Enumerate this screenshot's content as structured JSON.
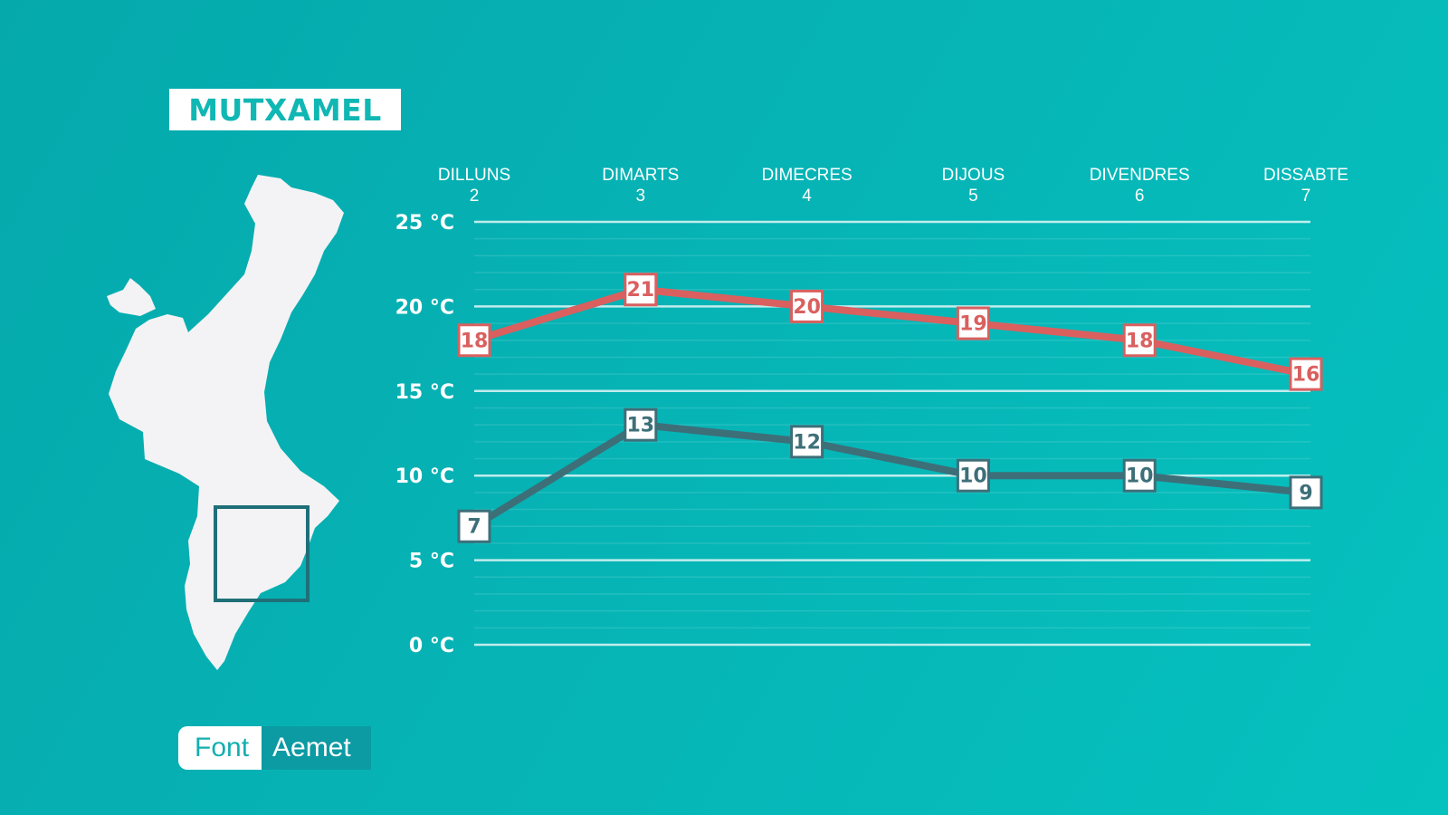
{
  "location": "MUTXAMEL",
  "source": {
    "label": "Font",
    "value": "Aemet"
  },
  "colors": {
    "max_series": "#d9605f",
    "min_series": "#3d6f79",
    "background": "#06b3b5",
    "map": "#f3f3f5",
    "highlight_box": "#1f6f78"
  },
  "chart_data": {
    "type": "line",
    "categories": [
      "DILLUNS 2",
      "DIMARTS 3",
      "DIMECRES 4",
      "DIJOUS 5",
      "DIVENDRES 6",
      "DISSABTE 7"
    ],
    "day_names": [
      "DILLUNS",
      "DIMARTS",
      "DIMECRES",
      "DIJOUS",
      "DIVENDRES",
      "DISSABTE"
    ],
    "day_numbers": [
      "2",
      "3",
      "4",
      "5",
      "6",
      "7"
    ],
    "yticks": [
      {
        "value": 25,
        "label": "25 °C"
      },
      {
        "value": 20,
        "label": "20 °C"
      },
      {
        "value": 15,
        "label": "15 °C"
      },
      {
        "value": 10,
        "label": "10 °C"
      },
      {
        "value": 5,
        "label": "5 °C"
      },
      {
        "value": 0,
        "label": "0 °C"
      }
    ],
    "ylim": [
      0,
      25
    ],
    "grid": true,
    "series": [
      {
        "key": "max",
        "values": [
          18,
          21,
          20,
          19,
          18,
          16
        ],
        "labels": [
          "18",
          "21",
          "20",
          "19",
          "18",
          "16"
        ]
      },
      {
        "key": "min",
        "values": [
          7,
          13,
          12,
          10,
          10,
          9
        ],
        "labels": [
          "7",
          "13",
          "12",
          "10",
          "10",
          "9"
        ]
      }
    ]
  }
}
